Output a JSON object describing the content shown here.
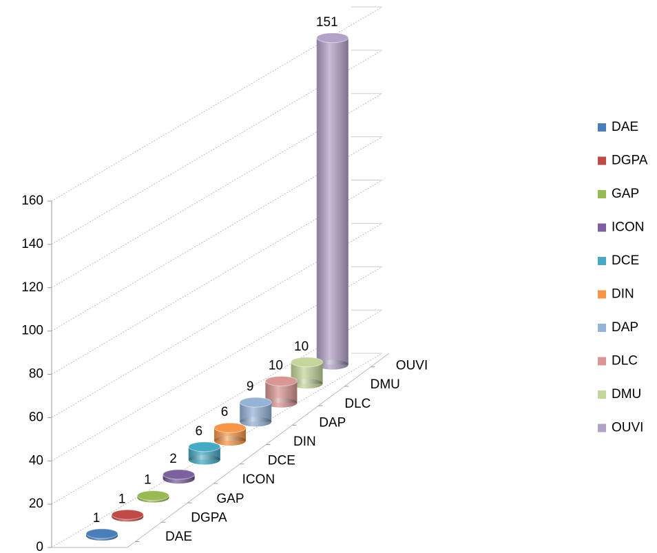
{
  "chart_data": {
    "type": "bar",
    "categories": [
      "DAE",
      "DGPA",
      "GAP",
      "ICON",
      "DCE",
      "DIN",
      "DAP",
      "DLC",
      "DMU",
      "OUVI"
    ],
    "values": [
      1,
      1,
      1,
      2,
      6,
      6,
      9,
      10,
      10,
      151
    ],
    "colors": [
      "#4a7ebb",
      "#be4b48",
      "#98b954",
      "#7d60a0",
      "#46aac5",
      "#f79646",
      "#95b3d7",
      "#d99694",
      "#c3d69b",
      "#b3a2c7"
    ],
    "ylim": [
      0,
      160
    ],
    "yticks": [
      0,
      20,
      40,
      60,
      80,
      100,
      120,
      140,
      160
    ],
    "grid": true,
    "legend": "right"
  }
}
